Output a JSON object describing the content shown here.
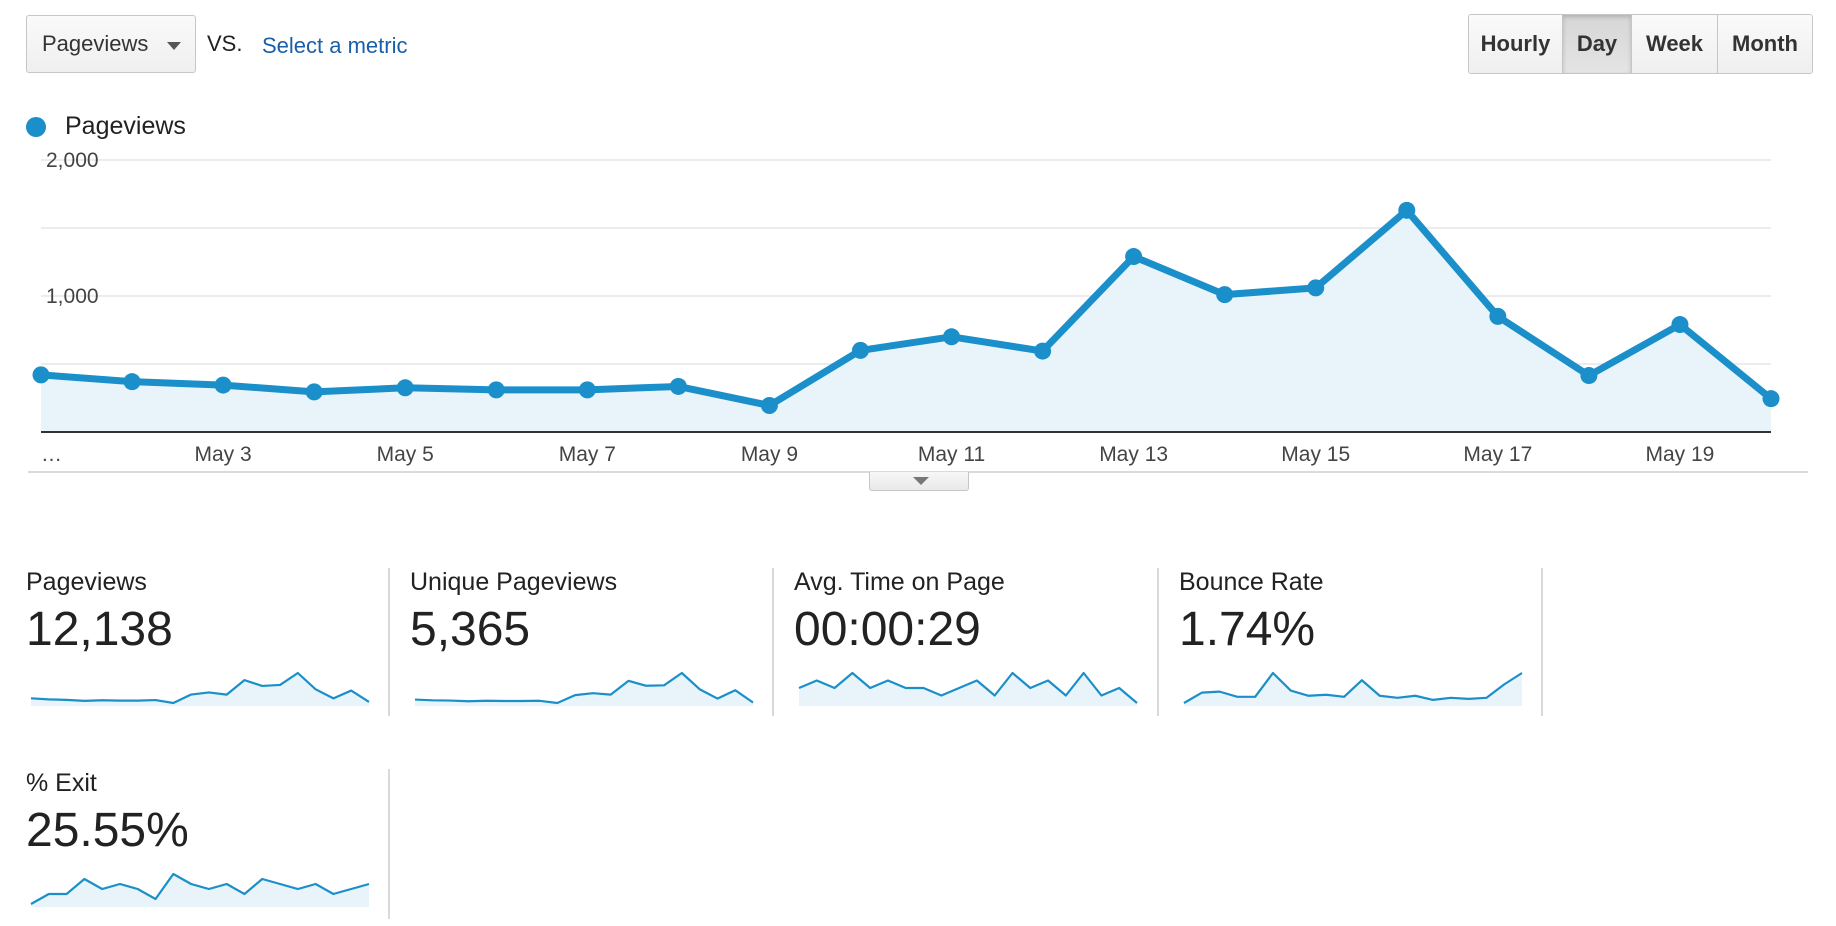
{
  "controls": {
    "metric_select_label": "Pageviews",
    "vs_label": "VS.",
    "select_metric_link": "Select a metric",
    "period_buttons": [
      "Hourly",
      "Day",
      "Week",
      "Month"
    ],
    "active_period": "Day"
  },
  "legend": {
    "label": "Pageviews",
    "color": "#1b8fc9"
  },
  "chart_data": {
    "type": "area",
    "series": [
      {
        "name": "Pageviews",
        "color": "#1b8fc9",
        "values": [
          420,
          370,
          345,
          295,
          325,
          310,
          310,
          335,
          195,
          600,
          700,
          595,
          1290,
          1010,
          1060,
          1630,
          850,
          415,
          790,
          245
        ]
      }
    ],
    "x": [
      "May 1",
      "May 2",
      "May 3",
      "May 4",
      "May 5",
      "May 6",
      "May 7",
      "May 8",
      "May 9",
      "May 10",
      "May 11",
      "May 12",
      "May 13",
      "May 14",
      "May 15",
      "May 16",
      "May 17",
      "May 18",
      "May 19",
      "May 20"
    ],
    "x_tick_labels": [
      "…",
      "May 3",
      "May 5",
      "May 7",
      "May 9",
      "May 11",
      "May 13",
      "May 15",
      "May 17",
      "May 19"
    ],
    "y_tick_labels": [
      "2,000",
      "1,000"
    ],
    "ylim": [
      0,
      2000
    ],
    "grid": true,
    "legend": "top-left"
  },
  "scorecards": [
    {
      "title": "Pageviews",
      "value": "12,138",
      "spark": [
        420,
        370,
        345,
        295,
        325,
        310,
        310,
        335,
        195,
        600,
        700,
        595,
        1290,
        1010,
        1060,
        1630,
        850,
        415,
        790,
        245
      ]
    },
    {
      "title": "Unique Pageviews",
      "value": "5,365",
      "spark": [
        180,
        165,
        160,
        145,
        155,
        150,
        150,
        155,
        110,
        270,
        310,
        280,
        560,
        460,
        470,
        720,
        390,
        200,
        370,
        120
      ]
    },
    {
      "title": "Avg. Time on Page",
      "value": "00:00:29",
      "spark": [
        30,
        31,
        30,
        32,
        30,
        31,
        30,
        30,
        29,
        30,
        31,
        29,
        32,
        30,
        31,
        29,
        32,
        29,
        30,
        28
      ]
    },
    {
      "title": "Bounce Rate",
      "value": "1.74%",
      "spark": [
        0.2,
        1.2,
        1.3,
        0.8,
        0.8,
        3.1,
        1.4,
        0.9,
        1.0,
        0.8,
        2.4,
        0.9,
        0.7,
        0.9,
        0.5,
        0.7,
        0.6,
        0.7,
        2.0,
        3.1
      ]
    },
    {
      "title": "% Exit",
      "value": "25.55%",
      "spark": [
        22,
        24,
        24,
        27,
        25,
        26,
        25,
        23,
        28,
        26,
        25,
        26,
        24,
        27,
        26,
        25,
        26,
        24,
        25,
        26
      ]
    }
  ]
}
